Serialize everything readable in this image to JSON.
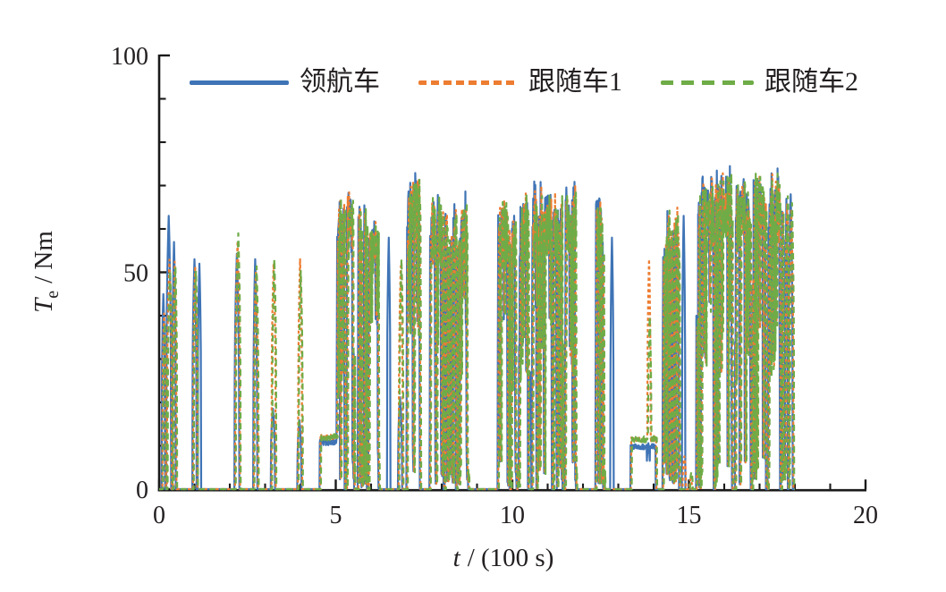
{
  "figure": {
    "legend": [
      {
        "key": "leader",
        "label": "领航车",
        "color": "#3F74B6",
        "dash": "solid",
        "sample_width": 111
      },
      {
        "key": "follower1",
        "label": "跟随车1",
        "color": "#ED7D31",
        "dash": "9 5",
        "sample_width": 111
      },
      {
        "key": "follower2",
        "label": "跟随车2",
        "color": "#6FAC47",
        "dash": "14 9",
        "sample_width": 104
      }
    ],
    "axis": {
      "xlabel_var": "t",
      "xlabel_rest": "/ (100 s)",
      "ylabel_var": "T",
      "ylabel_sub": "e",
      "ylabel_rest": "/ Nm"
    }
  },
  "chart_data": {
    "type": "line",
    "title": "",
    "xlabel": "t / (100 s)",
    "ylabel": "Te / Nm",
    "xlim": [
      0,
      20
    ],
    "ylim": [
      0,
      100
    ],
    "x_ticks": [
      0,
      5,
      10,
      15,
      20
    ],
    "y_ticks": [
      0,
      50,
      100
    ],
    "x_minor_step": 1,
    "y_minor_step": 10,
    "grid": false,
    "legend_position": "top",
    "data_end_t": 18.0,
    "sample_step": 0.01,
    "series": [
      {
        "key": "leader",
        "name": "领航车",
        "color": "#3F74B6",
        "style": "solid",
        "lag": 0.0,
        "width": 2.2
      },
      {
        "key": "follower1",
        "name": "跟随车1",
        "color": "#ED7D31",
        "style": "dashed",
        "lag": 0.018,
        "width": 2.2,
        "dasharray": "3.6 2.8"
      },
      {
        "key": "follower2",
        "name": "跟随车2",
        "color": "#6FAC47",
        "style": "dashed",
        "lag": 0.036,
        "width": 2.2,
        "dasharray": "7 5"
      }
    ],
    "events": [
      {
        "type": "spike",
        "t": 0.12,
        "width": 0.1,
        "peak": 45,
        "amps": [
          1,
          0.9,
          0.85
        ]
      },
      {
        "type": "spike",
        "t": 0.27,
        "width": 0.14,
        "peak": 63,
        "amps": [
          1,
          0.84,
          0.8
        ]
      },
      {
        "type": "spike",
        "t": 0.42,
        "width": 0.1,
        "peak": 57,
        "amps": [
          1,
          0.92,
          0.9
        ]
      },
      {
        "type": "spike",
        "t": 1.0,
        "width": 0.12,
        "peak": 53,
        "amps": [
          1,
          0.97,
          0.95
        ]
      },
      {
        "type": "spike",
        "t": 1.14,
        "width": 0.1,
        "peak": 52,
        "amps": [
          1,
          0,
          0
        ]
      },
      {
        "type": "spike",
        "t": 2.2,
        "width": 0.13,
        "peak": 59,
        "amps": [
          0.92,
          0.97,
          1
        ]
      },
      {
        "type": "spike",
        "t": 2.72,
        "width": 0.11,
        "peak": 53,
        "amps": [
          1,
          0.95,
          0.97
        ]
      },
      {
        "type": "spike",
        "t": 3.22,
        "width": 0.12,
        "peak": 53,
        "amps": [
          0.35,
          0.98,
          1
        ]
      },
      {
        "type": "spike",
        "t": 3.97,
        "width": 0.11,
        "peak": 53,
        "amps": [
          0.3,
          1,
          0.95
        ]
      },
      {
        "type": "plateau",
        "start": 4.55,
        "end": 5.02,
        "level": 12.5,
        "amps": [
          0.9,
          1,
          1
        ]
      },
      {
        "type": "burst",
        "start": 5.02,
        "end": 5.25,
        "peak": 65,
        "amps": [
          1,
          1,
          1
        ]
      },
      {
        "type": "burst",
        "start": 5.3,
        "end": 5.52,
        "peak": 67,
        "amps": [
          1,
          1,
          1
        ]
      },
      {
        "type": "burst",
        "start": 5.62,
        "end": 5.88,
        "peak": 64,
        "amps": [
          1,
          1,
          1
        ]
      },
      {
        "type": "burst",
        "start": 5.92,
        "end": 6.22,
        "peak": 61,
        "amps": [
          1,
          1,
          1
        ]
      },
      {
        "type": "spike",
        "t": 6.5,
        "width": 0.1,
        "peak": 58,
        "amps": [
          1,
          0,
          0
        ]
      },
      {
        "type": "spike",
        "t": 6.82,
        "width": 0.11,
        "peak": 53,
        "amps": [
          0.4,
          0.97,
          1
        ]
      },
      {
        "type": "burst",
        "start": 7.0,
        "end": 7.38,
        "peak": 72,
        "amps": [
          1,
          0.98,
          0.97
        ]
      },
      {
        "type": "burst",
        "start": 7.65,
        "end": 8.05,
        "peak": 66,
        "amps": [
          1,
          1,
          1
        ]
      },
      {
        "type": "burst",
        "start": 8.08,
        "end": 8.4,
        "peak": 64,
        "amps": [
          1,
          1,
          1
        ]
      },
      {
        "type": "burst",
        "start": 8.42,
        "end": 8.75,
        "peak": 67,
        "amps": [
          1,
          1,
          1
        ]
      },
      {
        "type": "burst",
        "start": 9.58,
        "end": 9.92,
        "peak": 67,
        "amps": [
          0.98,
          1,
          0.99
        ]
      },
      {
        "type": "burst",
        "start": 9.95,
        "end": 10.12,
        "peak": 64,
        "amps": [
          1,
          1,
          1
        ]
      },
      {
        "type": "burst",
        "start": 10.15,
        "end": 10.45,
        "peak": 66,
        "amps": [
          1,
          1,
          1
        ]
      },
      {
        "type": "spike",
        "t": 10.5,
        "width": 0.08,
        "peak": 27,
        "amps": [
          1,
          0,
          0
        ]
      },
      {
        "type": "burst",
        "start": 10.55,
        "end": 11.12,
        "peak": 69,
        "amps": [
          1,
          0.98,
          0.97
        ]
      },
      {
        "type": "burst",
        "start": 11.15,
        "end": 11.42,
        "peak": 67,
        "amps": [
          1,
          1,
          1
        ]
      },
      {
        "type": "burst",
        "start": 11.48,
        "end": 11.8,
        "peak": 70,
        "amps": [
          1,
          0.98,
          0.98
        ]
      },
      {
        "type": "burst",
        "start": 12.35,
        "end": 12.6,
        "peak": 68,
        "amps": [
          1,
          0.98,
          0.97
        ]
      },
      {
        "type": "spike",
        "t": 12.82,
        "width": 0.09,
        "peak": 58,
        "amps": [
          1,
          0,
          0
        ]
      },
      {
        "type": "plateau",
        "start": 13.35,
        "end": 14.05,
        "level": 12,
        "amps": [
          0.85,
          1,
          1
        ]
      },
      {
        "type": "spike",
        "t": 13.85,
        "width": 0.1,
        "peak": 53,
        "amps": [
          0.2,
          1,
          0.75
        ]
      },
      {
        "type": "burst",
        "start": 14.25,
        "end": 14.72,
        "peak": 65,
        "amps": [
          0.98,
          1,
          0.99
        ]
      },
      {
        "type": "spike",
        "t": 14.85,
        "width": 0.09,
        "peak": 63,
        "amps": [
          1,
          0.12,
          0
        ]
      },
      {
        "type": "spike",
        "t": 15.03,
        "width": 0.07,
        "peak": 4,
        "amps": [
          0,
          0.6,
          1
        ]
      },
      {
        "type": "burst",
        "start": 15.2,
        "end": 15.7,
        "peak": 70,
        "amps": [
          1,
          0.99,
          0.98
        ]
      },
      {
        "type": "burst",
        "start": 15.72,
        "end": 16.22,
        "peak": 72,
        "amps": [
          1,
          0.99,
          0.98
        ]
      },
      {
        "type": "burst",
        "start": 16.3,
        "end": 16.75,
        "peak": 72,
        "amps": [
          1,
          0.98,
          0.98
        ]
      },
      {
        "type": "burst",
        "start": 16.78,
        "end": 17.18,
        "peak": 71,
        "amps": [
          1,
          1,
          0.99
        ]
      },
      {
        "type": "burst",
        "start": 17.22,
        "end": 17.58,
        "peak": 72,
        "amps": [
          1,
          0.98,
          0.98
        ]
      },
      {
        "type": "burst",
        "start": 17.6,
        "end": 17.8,
        "peak": 69,
        "amps": [
          1,
          1,
          1
        ]
      },
      {
        "type": "spike",
        "t": 17.88,
        "width": 0.12,
        "peak": 68,
        "amps": [
          1,
          0.95,
          0.97
        ]
      }
    ]
  }
}
